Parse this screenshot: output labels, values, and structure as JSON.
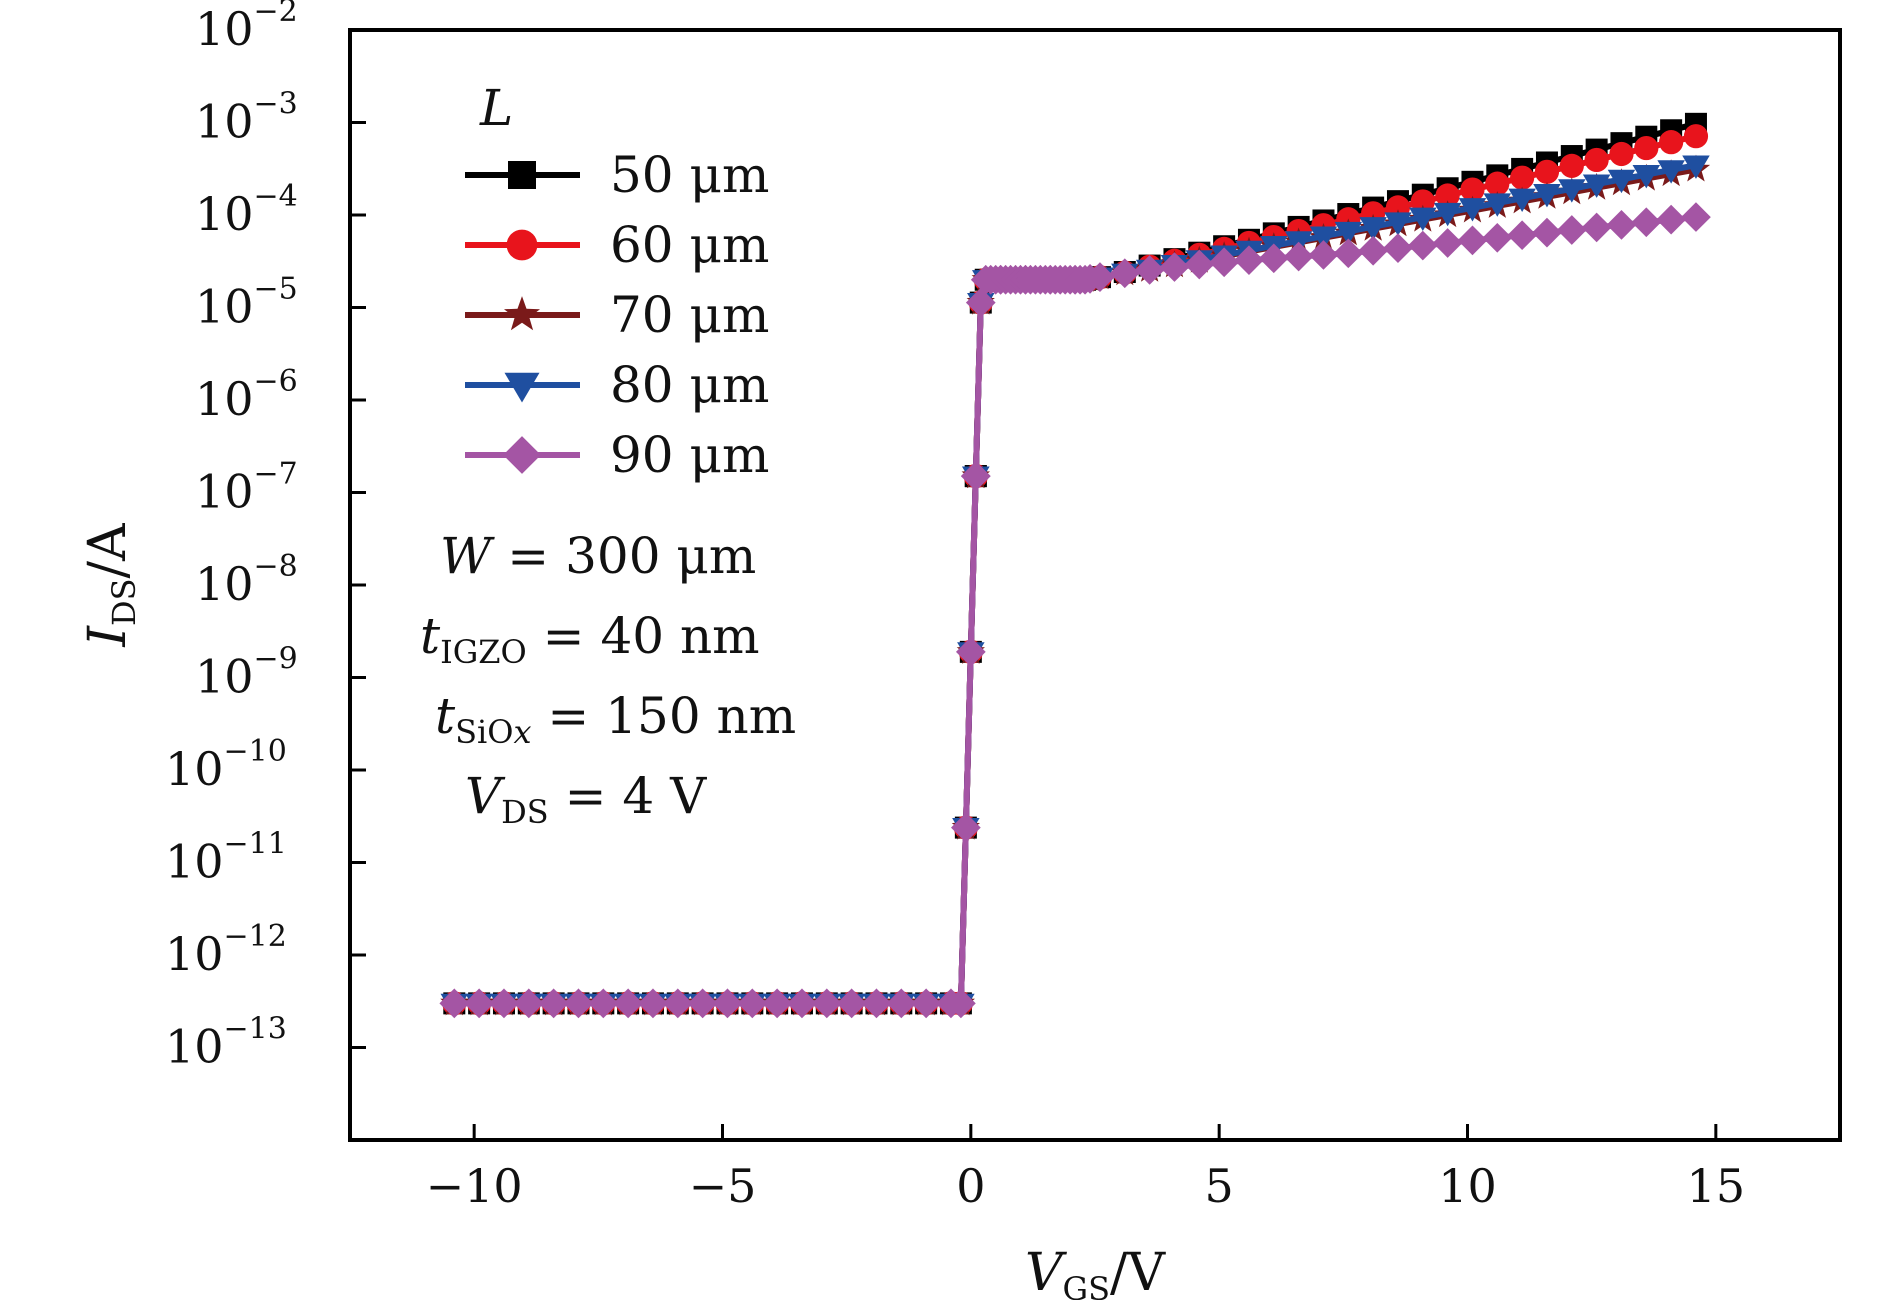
{
  "chart_data": {
    "type": "line",
    "title": "",
    "xlabel": {
      "main": "V",
      "sub": "GS",
      "unit": "/V"
    },
    "ylabel": {
      "main": "I",
      "sub": "DS",
      "unit": "/A"
    },
    "xlim": [
      -12.5,
      17.5
    ],
    "ylim_log10": [
      -14,
      -2
    ],
    "y_scale": "log",
    "grid": false,
    "x_ticks": [
      -10,
      -5,
      0,
      5,
      10,
      15
    ],
    "x_tick_labels": [
      "−10",
      "−5",
      "0",
      "5",
      "10",
      "15"
    ],
    "y_ticks": [
      {
        "base": "10",
        "exp": "−2",
        "value": -2
      },
      {
        "base": "10",
        "exp": "−3",
        "value": -3
      },
      {
        "base": "10",
        "exp": "−4",
        "value": -4
      },
      {
        "base": "10",
        "exp": "−5",
        "value": -5
      },
      {
        "base": "10",
        "exp": "−6",
        "value": -6
      },
      {
        "base": "10",
        "exp": "−7",
        "value": -7
      },
      {
        "base": "10",
        "exp": "−8",
        "value": -8
      },
      {
        "base": "10",
        "exp": "−9",
        "value": -9
      },
      {
        "base": "10",
        "exp": "−10",
        "value": -10
      },
      {
        "base": "10",
        "exp": "−11",
        "value": -11
      },
      {
        "base": "10",
        "exp": "−12",
        "value": -12
      },
      {
        "base": "10",
        "exp": "−13",
        "value": -13
      }
    ],
    "x_range": [
      -10.4,
      15
    ],
    "x_step": 0.5,
    "legend": {
      "title": "L",
      "position": "top-left"
    },
    "series": [
      {
        "name": "50 μm",
        "color": "#000000",
        "marker": "square",
        "ion": 0.0011
      },
      {
        "name": "60 μm",
        "color": "#e8141c",
        "marker": "circle",
        "ion": 0.0008
      },
      {
        "name": "70 μm",
        "color": "#7a1a1a",
        "marker": "star",
        "ion": 0.00034
      },
      {
        "name": "80 μm",
        "color": "#1f4fa0",
        "marker": "triangle-down",
        "ion": 0.00038
      },
      {
        "name": "90 μm",
        "color": "#a455a4",
        "marker": "diamond",
        "ion": 0.0001
      }
    ],
    "off_current": 3e-13,
    "annotations": [
      {
        "main": "W",
        "sub": "",
        "eq": " = 300 μm"
      },
      {
        "main": "t",
        "sub": "IGZO",
        "eq": " = 40 nm"
      },
      {
        "main": "t",
        "sub": "SiO",
        "subsub": "x",
        "eq": " = 150 nm"
      },
      {
        "main": "V",
        "sub": "DS",
        "eq": " = 4 V"
      }
    ]
  }
}
